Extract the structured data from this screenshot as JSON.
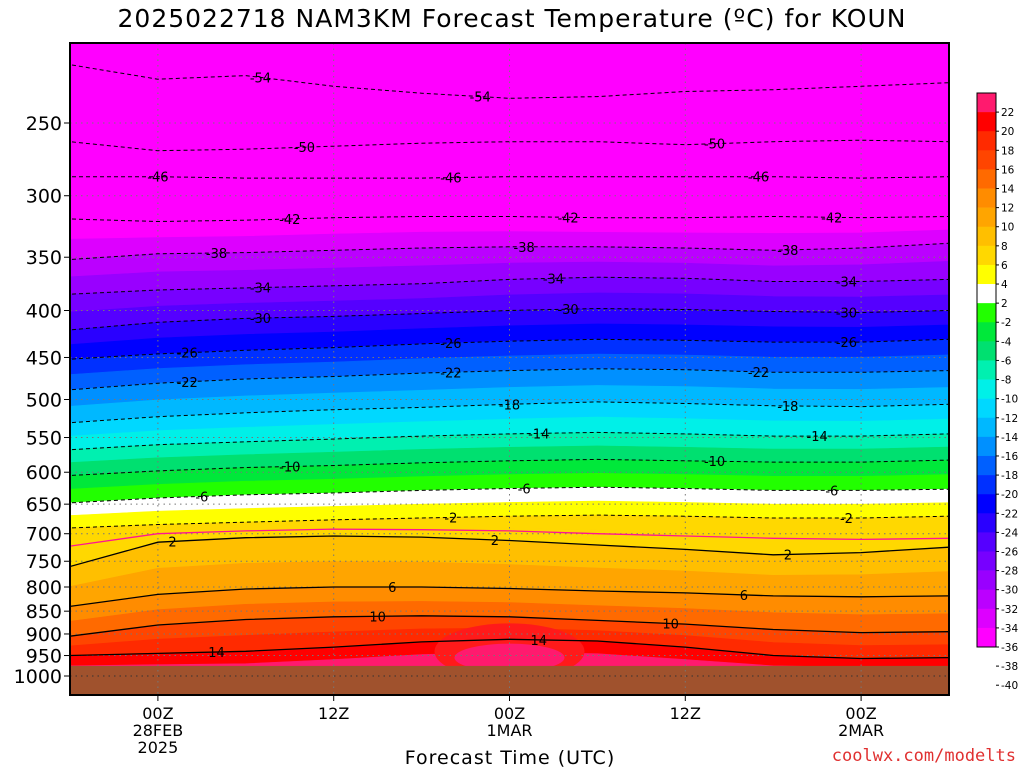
{
  "page": {
    "title": "2025022718 NAM3KM Forecast Temperature (ºC) for KOUN",
    "credit": "coolwx.com/modelts"
  },
  "chart_data": {
    "type": "heatmap",
    "title": "2025022718 NAM3KM Forecast Temperature (ºC) for KOUN",
    "xlabel": "Forecast Time (UTC)",
    "ylabel": "",
    "y_scale": "log-pressure",
    "ylim_hpa": [
      1000,
      200
    ],
    "xlim_hours": [
      0,
      60
    ],
    "grid": true,
    "y_ticks": [
      250,
      300,
      350,
      400,
      450,
      500,
      550,
      600,
      650,
      700,
      750,
      800,
      850,
      900,
      950,
      1000
    ],
    "x_ticks": [
      {
        "hour": 6,
        "lines": [
          "00Z",
          "28FEB",
          "2025"
        ]
      },
      {
        "hour": 18,
        "lines": [
          "12Z"
        ]
      },
      {
        "hour": 30,
        "lines": [
          "00Z",
          "1MAR"
        ]
      },
      {
        "hour": 42,
        "lines": [
          "12Z"
        ]
      },
      {
        "hour": 54,
        "lines": [
          "00Z",
          "2MAR"
        ]
      }
    ],
    "surface_pressure_hpa": 975,
    "colorbar": {
      "levels": [
        22,
        20,
        18,
        16,
        14,
        12,
        10,
        8,
        6,
        4,
        2,
        -2,
        -4,
        -6,
        -8,
        -10,
        -12,
        -14,
        -16,
        -18,
        -20,
        -22,
        -24,
        -26,
        -28,
        -30,
        -32,
        -34,
        -36,
        -38,
        -40
      ],
      "colors": [
        "#ff1a6e",
        "#ff0000",
        "#ff2a00",
        "#ff4500",
        "#ff6a00",
        "#ff8c00",
        "#ffa500",
        "#ffbf00",
        "#ffd800",
        "#ffff00",
        "#ffffff",
        "#22ff00",
        "#00e83a",
        "#00e070",
        "#00f0b0",
        "#00f0e8",
        "#00d8ff",
        "#00b8ff",
        "#0090ff",
        "#0060ff",
        "#0030ff",
        "#0000ff",
        "#2a00ff",
        "#5500ff",
        "#7700ff",
        "#9900ff",
        "#bb00ff",
        "#dd00ff",
        "#ff00ff"
      ]
    },
    "isotherms": [
      {
        "value": -54,
        "pressure": [
          216,
          224,
          222,
          228,
          232,
          235,
          234,
          231,
          230,
          228,
          226
        ],
        "labels": [
          {
            "hour": 13,
            "text": "-54"
          },
          {
            "hour": 28,
            "text": "-54"
          }
        ]
      },
      {
        "value": -50,
        "pressure": [
          262,
          268,
          267,
          265,
          263,
          262,
          262,
          264,
          262,
          261,
          262
        ],
        "labels": [
          {
            "hour": 16,
            "text": "-50"
          },
          {
            "hour": 44,
            "text": "-50"
          }
        ]
      },
      {
        "value": -46,
        "pressure": [
          286,
          286,
          287,
          287,
          287,
          286,
          286,
          286,
          286,
          287,
          286
        ],
        "labels": [
          {
            "hour": 6,
            "text": "-46"
          },
          {
            "hour": 26,
            "text": "-46"
          },
          {
            "hour": 47,
            "text": "-46"
          }
        ]
      },
      {
        "value": -42,
        "pressure": [
          318,
          320,
          319,
          317,
          316,
          316,
          317,
          317,
          316,
          317,
          316
        ],
        "labels": [
          {
            "hour": 15,
            "text": "-42"
          },
          {
            "hour": 34,
            "text": "-42"
          },
          {
            "hour": 52,
            "text": "-42"
          }
        ]
      },
      {
        "value": -38,
        "pressure": [
          352,
          347,
          346,
          344,
          342,
          341,
          341,
          342,
          344,
          342,
          338
        ],
        "labels": [
          {
            "hour": 10,
            "text": "-38"
          },
          {
            "hour": 31,
            "text": "-38"
          },
          {
            "hour": 49,
            "text": "-38"
          }
        ]
      },
      {
        "value": -34,
        "pressure": [
          384,
          380,
          378,
          376,
          374,
          370,
          368,
          369,
          372,
          372,
          370
        ],
        "labels": [
          {
            "hour": 13,
            "text": "-34"
          },
          {
            "hour": 33,
            "text": "-34"
          },
          {
            "hour": 53,
            "text": "-34"
          }
        ]
      },
      {
        "value": -30,
        "pressure": [
          420,
          412,
          408,
          406,
          403,
          400,
          398,
          399,
          401,
          402,
          400
        ],
        "labels": [
          {
            "hour": 13,
            "text": "-30"
          },
          {
            "hour": 34,
            "text": "-30"
          },
          {
            "hour": 53,
            "text": "-30"
          }
        ]
      },
      {
        "value": -26,
        "pressure": [
          452,
          446,
          442,
          439,
          435,
          432,
          430,
          431,
          433,
          433,
          430
        ],
        "labels": [
          {
            "hour": 8,
            "text": "-26"
          },
          {
            "hour": 26,
            "text": "-26"
          },
          {
            "hour": 53,
            "text": "-26"
          }
        ]
      },
      {
        "value": -22,
        "pressure": [
          488,
          480,
          475,
          472,
          468,
          465,
          463,
          464,
          467,
          467,
          465
        ],
        "labels": [
          {
            "hour": 8,
            "text": "-22"
          },
          {
            "hour": 26,
            "text": "-22"
          },
          {
            "hour": 47,
            "text": "-22"
          }
        ]
      },
      {
        "value": -18,
        "pressure": [
          530,
          522,
          517,
          513,
          510,
          506,
          503,
          505,
          508,
          509,
          506
        ],
        "labels": [
          {
            "hour": 30,
            "text": "-18"
          },
          {
            "hour": 49,
            "text": "-18"
          }
        ]
      },
      {
        "value": -14,
        "pressure": [
          567,
          560,
          556,
          552,
          548,
          545,
          543,
          545,
          548,
          548,
          545
        ],
        "labels": [
          {
            "hour": 32,
            "text": "-14"
          },
          {
            "hour": 51,
            "text": "-14"
          }
        ]
      },
      {
        "value": -10,
        "pressure": [
          605,
          598,
          593,
          590,
          586,
          583,
          581,
          583,
          585,
          585,
          582
        ],
        "labels": [
          {
            "hour": 15,
            "text": "-10"
          },
          {
            "hour": 44,
            "text": "-10"
          }
        ]
      },
      {
        "value": -6,
        "pressure": [
          648,
          640,
          635,
          632,
          628,
          625,
          623,
          625,
          628,
          628,
          626
        ],
        "labels": [
          {
            "hour": 9,
            "text": "-6"
          },
          {
            "hour": 31,
            "text": "-6"
          },
          {
            "hour": 52,
            "text": "-6"
          }
        ]
      },
      {
        "value": -2,
        "pressure": [
          690,
          684,
          680,
          676,
          673,
          670,
          668,
          670,
          673,
          673,
          670
        ],
        "labels": [
          {
            "hour": 26,
            "text": "-2"
          },
          {
            "hour": 53,
            "text": "-2"
          }
        ]
      },
      {
        "value": 2,
        "pressure": [
          760,
          715,
          707,
          704,
          706,
          712,
          720,
          728,
          738,
          734,
          724
        ],
        "labels": [
          {
            "hour": 7,
            "text": "2"
          },
          {
            "hour": 29,
            "text": "2"
          },
          {
            "hour": 49,
            "text": "2"
          }
        ]
      },
      {
        "value": 6,
        "pressure": [
          840,
          815,
          804,
          800,
          800,
          803,
          808,
          812,
          818,
          820,
          818
        ],
        "labels": [
          {
            "hour": 22,
            "text": "6"
          },
          {
            "hour": 46,
            "text": "6"
          }
        ]
      },
      {
        "value": 10,
        "pressure": [
          905,
          880,
          868,
          862,
          860,
          862,
          870,
          878,
          890,
          897,
          895
        ],
        "labels": [
          {
            "hour": 21,
            "text": "10"
          },
          {
            "hour": 41,
            "text": "10"
          }
        ]
      },
      {
        "value": 14,
        "pressure": [
          950,
          945,
          940,
          930,
          918,
          912,
          916,
          930,
          950,
          957,
          955
        ],
        "labels": [
          {
            "hour": 10,
            "text": "14"
          },
          {
            "hour": 32,
            "text": "14"
          }
        ]
      }
    ],
    "freezing_line": {
      "value": 0,
      "pressure": [
        722,
        700,
        695,
        692,
        693,
        695,
        700,
        704,
        708,
        710,
        708
      ]
    }
  }
}
